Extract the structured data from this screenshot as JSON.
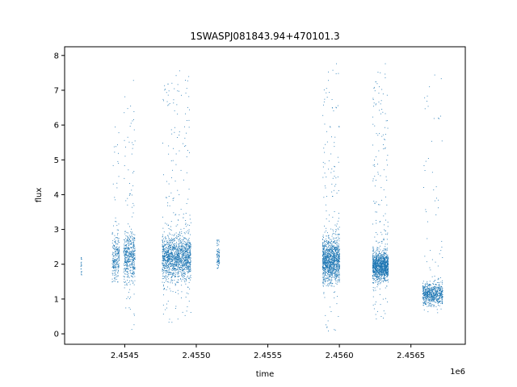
{
  "chart_data": {
    "type": "scatter",
    "title": "1SWASPJ081843.94+470101.3",
    "xlabel": "time",
    "ylabel": "flux",
    "x_offset_label": "1e6",
    "xlim": [
      2454080,
      2456880
    ],
    "ylim": [
      -0.3,
      8.25
    ],
    "x_ticks": [
      2454500,
      2455000,
      2455500,
      2456000,
      2456500
    ],
    "x_tick_labels": [
      "2.4545",
      "2.4550",
      "2.4555",
      "2.4560",
      "2.4565"
    ],
    "y_ticks": [
      0,
      1,
      2,
      3,
      4,
      5,
      6,
      7,
      8
    ],
    "y_tick_labels": [
      "0",
      "1",
      "2",
      "3",
      "4",
      "5",
      "6",
      "7",
      "8"
    ],
    "grid": false,
    "marker_color": "#1f77b4",
    "clusters": [
      {
        "x_start": 2454190,
        "x_end": 2454198,
        "y_center": 2.0,
        "y_spread": 0.18,
        "min_y": 1.4,
        "max_y": 2.2,
        "count": 20
      },
      {
        "x_start": 2454410,
        "x_end": 2454460,
        "y_center": 2.2,
        "y_spread": 0.3,
        "min_y": 1.5,
        "max_y": 6.0,
        "count": 260
      },
      {
        "x_start": 2454490,
        "x_end": 2454570,
        "y_center": 2.2,
        "y_spread": 0.35,
        "min_y": 0.1,
        "max_y": 7.4,
        "count": 520
      },
      {
        "x_start": 2454760,
        "x_end": 2454960,
        "y_center": 2.2,
        "y_spread": 0.3,
        "min_y": 0.3,
        "max_y": 7.7,
        "count": 1500
      },
      {
        "x_start": 2455140,
        "x_end": 2455160,
        "y_center": 2.2,
        "y_spread": 0.2,
        "min_y": 1.8,
        "max_y": 2.7,
        "count": 90
      },
      {
        "x_start": 2455880,
        "x_end": 2456000,
        "y_center": 2.1,
        "y_spread": 0.3,
        "min_y": 0.05,
        "max_y": 7.8,
        "count": 1300
      },
      {
        "x_start": 2456230,
        "x_end": 2456340,
        "y_center": 1.95,
        "y_spread": 0.2,
        "min_y": 0.4,
        "max_y": 7.8,
        "count": 1300
      },
      {
        "x_start": 2456580,
        "x_end": 2456720,
        "y_center": 1.15,
        "y_spread": 0.15,
        "min_y": 0.6,
        "max_y": 7.7,
        "count": 700
      }
    ]
  }
}
